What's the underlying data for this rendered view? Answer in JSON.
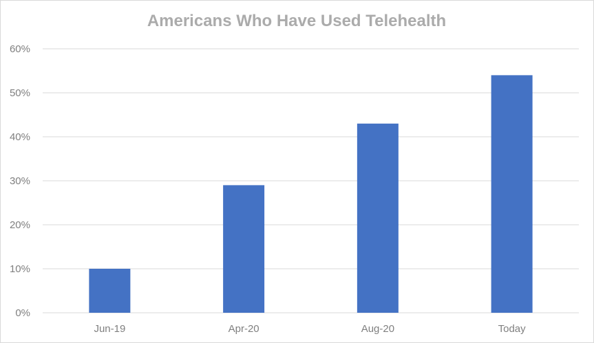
{
  "chart_data": {
    "type": "bar",
    "title": "Americans Who Have Used Telehealth",
    "categories": [
      "Jun-19",
      "Apr-20",
      "Aug-20",
      "Today"
    ],
    "series": [
      {
        "values": [
          10,
          29,
          43,
          54
        ]
      }
    ],
    "ylim": [
      0,
      60
    ],
    "yticks": [
      "0%",
      "10%",
      "20%",
      "30%",
      "40%",
      "50%",
      "60%"
    ],
    "ytick_values": [
      0,
      10,
      20,
      30,
      40,
      50,
      60
    ],
    "xlabel": "",
    "ylabel": "",
    "grid": true,
    "legend": "none",
    "colors": {
      "bar": "#4472c4",
      "grid": "#d9d9d9",
      "axis": "#d9d9d9",
      "title": "#ababab",
      "tick": "#7f7f7f"
    }
  }
}
